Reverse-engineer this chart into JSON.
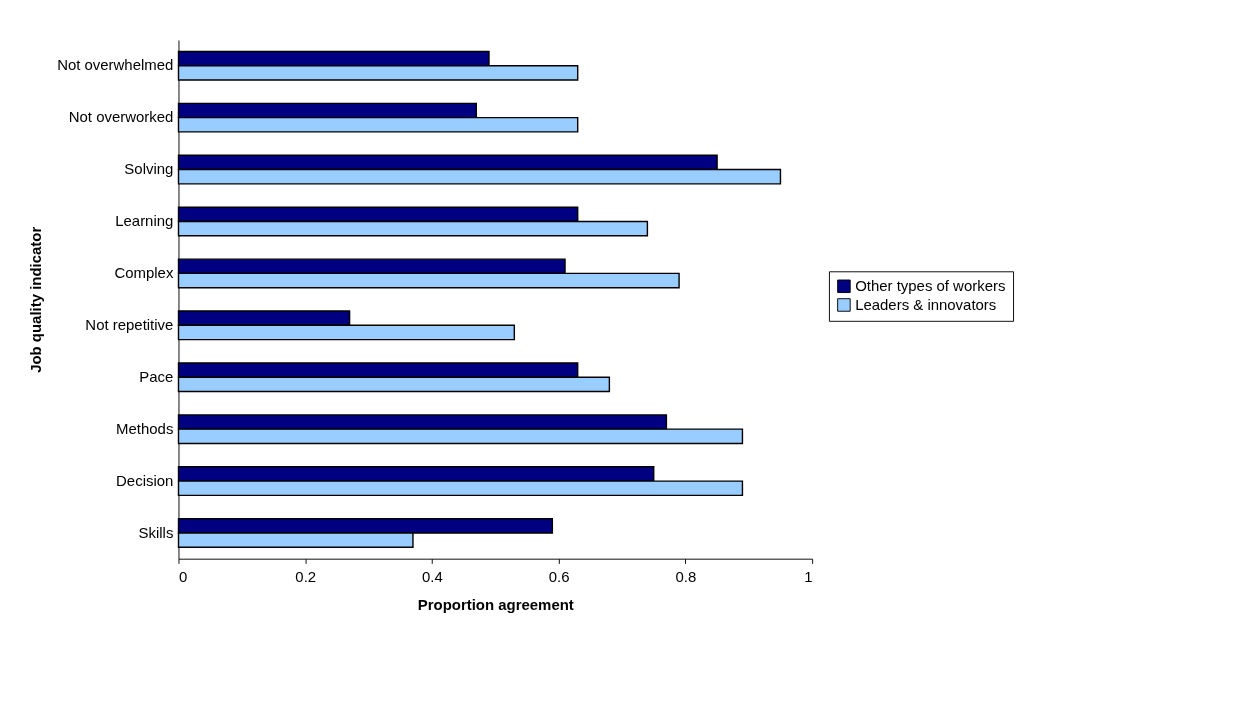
{
  "chart_data": {
    "type": "bar",
    "orientation": "horizontal",
    "xlabel": "Proportion agreement",
    "ylabel": "Job quality indicator",
    "categories": [
      "Not overwhelmed",
      "Not overworked",
      "Solving",
      "Learning",
      "Complex",
      "Not repetitive",
      "Pace",
      "Methods",
      "Decision",
      "Skills"
    ],
    "series": [
      {
        "name": "Other types of workers",
        "color": "#000080",
        "values": [
          0.49,
          0.47,
          0.85,
          0.63,
          0.61,
          0.27,
          0.63,
          0.77,
          0.75,
          0.59
        ]
      },
      {
        "name": "Leaders & innovators",
        "color": "#99ccff",
        "values": [
          0.63,
          0.63,
          0.95,
          0.74,
          0.79,
          0.53,
          0.68,
          0.89,
          0.89,
          0.37
        ]
      }
    ],
    "xlim": [
      0,
      1
    ],
    "xticks": [
      0,
      0.2,
      0.4,
      0.6,
      0.8,
      1
    ],
    "grid": false,
    "legend": "right"
  }
}
